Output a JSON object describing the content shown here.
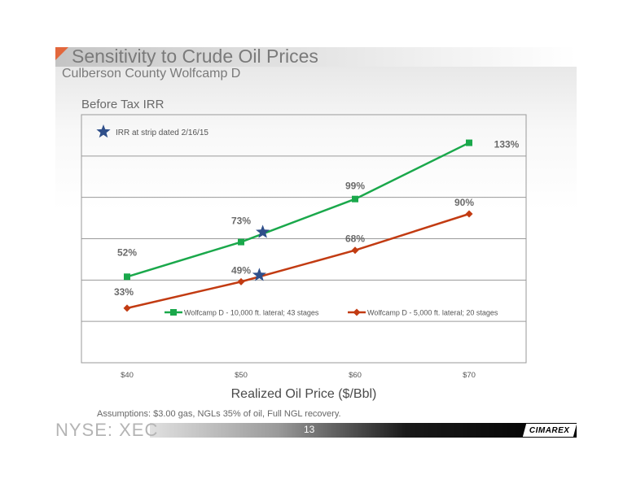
{
  "slide": {
    "title": "Sensitivity to Crude Oil Prices",
    "subtitle": "Culberson County Wolfcamp D",
    "assumptions": "Assumptions: $3.00 gas, NGLs 35% of oil, Full NGL recovery.",
    "ticker": "NYSE: XEC",
    "page_number": "13",
    "logo_text": "CIMAREX"
  },
  "chart_data": {
    "type": "line",
    "title": "Before Tax IRR",
    "xlabel": "Realized Oil Price ($/Bbl)",
    "ylabel": "",
    "x": [
      40,
      50,
      60,
      70
    ],
    "x_tick_labels": [
      "$40",
      "$50",
      "$60",
      "$70"
    ],
    "xlim": [
      36,
      75
    ],
    "ylim": [
      0,
      150
    ],
    "grid": true,
    "legend_position": "bottom-inside",
    "series": [
      {
        "name": "Wolfcamp D - 10,000 ft. lateral; 43 stages",
        "values": [
          52,
          73,
          99,
          133
        ],
        "labels": [
          "52%",
          "73%",
          "99%",
          "133%"
        ],
        "color": "#1aa84b",
        "marker": "square"
      },
      {
        "name": "Wolfcamp D - 5,000 ft. lateral; 20 stages",
        "values": [
          33,
          49,
          68,
          90
        ],
        "labels": [
          "33%",
          "49%",
          "68%",
          "90%"
        ],
        "color": "#c23b12",
        "marker": "diamond"
      }
    ],
    "markers": {
      "label": "IRR at strip dated  2/16/15",
      "color": "#2f4f8a",
      "points": [
        {
          "x": 51.9,
          "y": 79
        },
        {
          "x": 51.6,
          "y": 53
        }
      ]
    }
  }
}
